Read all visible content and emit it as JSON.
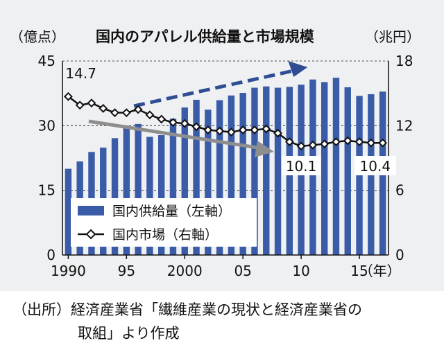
{
  "chart_data": {
    "type": "bar+line",
    "title": "国内のアパレル供給量と市場規模",
    "ylabel_left": "（億点）",
    "ylabel_right": "（兆円）",
    "xlabel_suffix": "（年）",
    "y_left_ticks": [
      "0",
      "15",
      "30",
      "45"
    ],
    "y_right_ticks": [
      "0",
      "6",
      "12",
      "18"
    ],
    "ylim_left": [
      0,
      45
    ],
    "ylim_right": [
      0,
      18
    ],
    "x_tick_labels": [
      {
        "year": 1990,
        "label": "1990"
      },
      {
        "year": 1995,
        "label": "95"
      },
      {
        "year": 2000,
        "label": "2000"
      },
      {
        "year": 2005,
        "label": "05"
      },
      {
        "year": 2010,
        "label": "10"
      },
      {
        "year": 2015,
        "label": "15"
      }
    ],
    "years": [
      1990,
      1991,
      1992,
      1993,
      1994,
      1995,
      1996,
      1997,
      1998,
      1999,
      2000,
      2001,
      2002,
      2003,
      2004,
      2005,
      2006,
      2007,
      2008,
      2009,
      2010,
      2011,
      2012,
      2013,
      2014,
      2015,
      2016,
      2017
    ],
    "series": [
      {
        "name": "国内供給量（左軸）",
        "axis": "left",
        "kind": "bar",
        "color": "#3a5ba8",
        "values": [
          20.0,
          21.7,
          23.9,
          24.9,
          27.1,
          30.0,
          30.4,
          27.4,
          27.8,
          31.6,
          34.2,
          36.0,
          33.7,
          35.9,
          37.0,
          37.6,
          38.8,
          39.1,
          38.8,
          39.0,
          39.5,
          40.7,
          40.1,
          41.1,
          38.9,
          36.9,
          37.3,
          37.9
        ]
      },
      {
        "name": "国内市場（右軸）",
        "axis": "right",
        "kind": "line",
        "color": "#111111",
        "values": [
          14.7,
          13.9,
          14.1,
          13.6,
          13.2,
          13.2,
          13.5,
          13.0,
          12.6,
          12.3,
          12.2,
          11.9,
          11.6,
          11.5,
          11.4,
          11.6,
          11.6,
          11.7,
          11.3,
          10.5,
          10.1,
          10.2,
          10.3,
          10.5,
          10.6,
          10.5,
          10.4,
          10.4
        ]
      }
    ],
    "annotations": {
      "start_value": "14.7",
      "value_2010": "10.1",
      "end_value": "10.4"
    },
    "legend_position": "bottom-left",
    "grid": "dashed horizontal",
    "colors": {
      "bar": "#3a5ba8",
      "trend_up": "#2f4d92",
      "trend_down": "#8e8e8e",
      "line": "#111111"
    }
  },
  "source": {
    "line1": "（出所）経済産業省「繊維産業の現状と経済産業省の",
    "line2": "取組」より作成"
  }
}
